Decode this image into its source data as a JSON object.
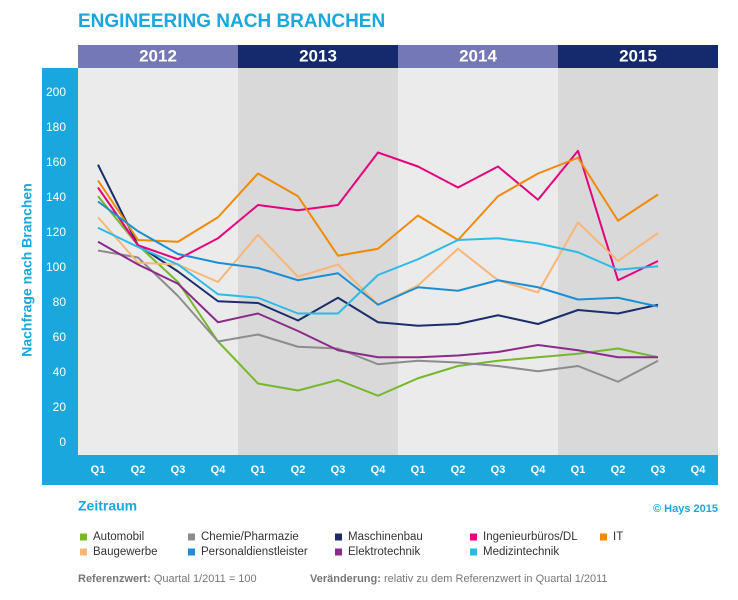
{
  "chart_data": {
    "type": "line",
    "title": "ENGINEERING NACH BRANCHEN",
    "y_label": "Nachfrage nach Branchen",
    "x_label": "Zeitraum",
    "source": "© Hays 2015",
    "years": [
      "2012",
      "2013",
      "2014",
      "2015"
    ],
    "categories": [
      "Q1",
      "Q2",
      "Q3",
      "Q4",
      "Q1",
      "Q2",
      "Q3",
      "Q4",
      "Q1",
      "Q2",
      "Q3",
      "Q4",
      "Q1",
      "Q2",
      "Q3",
      "Q4"
    ],
    "ylim": [
      0,
      200
    ],
    "yticks": [
      0,
      20,
      40,
      60,
      80,
      100,
      120,
      140,
      160,
      180,
      200
    ],
    "series": [
      {
        "name": "Automobil",
        "color": "#76b82a",
        "values": [
          141,
          113,
          92,
          58,
          34,
          30,
          36,
          27,
          37,
          44,
          47,
          49,
          51,
          54,
          49,
          null
        ]
      },
      {
        "name": "Chemie/Pharmazie",
        "color": "#8c8c8c",
        "values": [
          110,
          106,
          84,
          58,
          62,
          55,
          54,
          45,
          47,
          46,
          44,
          41,
          44,
          35,
          47,
          null
        ]
      },
      {
        "name": "Maschinenbau",
        "color": "#1b2d6b",
        "values": [
          159,
          113,
          98,
          81,
          80,
          70,
          83,
          69,
          67,
          68,
          73,
          68,
          76,
          74,
          79,
          null
        ]
      },
      {
        "name": "Ingenieurbüros/DL",
        "color": "#e5007d",
        "values": [
          146,
          113,
          105,
          117,
          136,
          133,
          136,
          166,
          158,
          146,
          158,
          139,
          167,
          93,
          104,
          null
        ]
      },
      {
        "name": "IT",
        "color": "#f08a00",
        "values": [
          150,
          116,
          115,
          129,
          154,
          141,
          107,
          111,
          130,
          116,
          141,
          154,
          163,
          127,
          142,
          null
        ]
      },
      {
        "name": "Baugewerbe",
        "color": "#f9b676",
        "values": [
          129,
          103,
          102,
          92,
          119,
          95,
          102,
          79,
          90,
          111,
          93,
          86,
          126,
          104,
          120,
          null
        ]
      },
      {
        "name": "Personaldienstleister",
        "color": "#1b8ed4",
        "values": [
          138,
          121,
          108,
          103,
          100,
          93,
          97,
          79,
          89,
          87,
          93,
          89,
          82,
          83,
          78,
          null
        ]
      },
      {
        "name": "Elektrotechnik",
        "color": "#8a2b8a",
        "values": [
          115,
          102,
          91,
          69,
          74,
          64,
          53,
          49,
          49,
          50,
          52,
          56,
          53,
          49,
          49,
          null
        ]
      },
      {
        "name": "Medizintechnik",
        "color": "#2cbbe6",
        "values": [
          123,
          112,
          102,
          85,
          83,
          74,
          74,
          96,
          105,
          116,
          117,
          114,
          109,
          99,
          101,
          null
        ]
      }
    ],
    "footnotes": [
      {
        "label": "Referenzwert:",
        "text": "Quartal 1/2011 = 100"
      },
      {
        "label": "Veränderung:",
        "text": "relativ zu dem Referenzwert in Quartal 1/2011"
      }
    ]
  }
}
